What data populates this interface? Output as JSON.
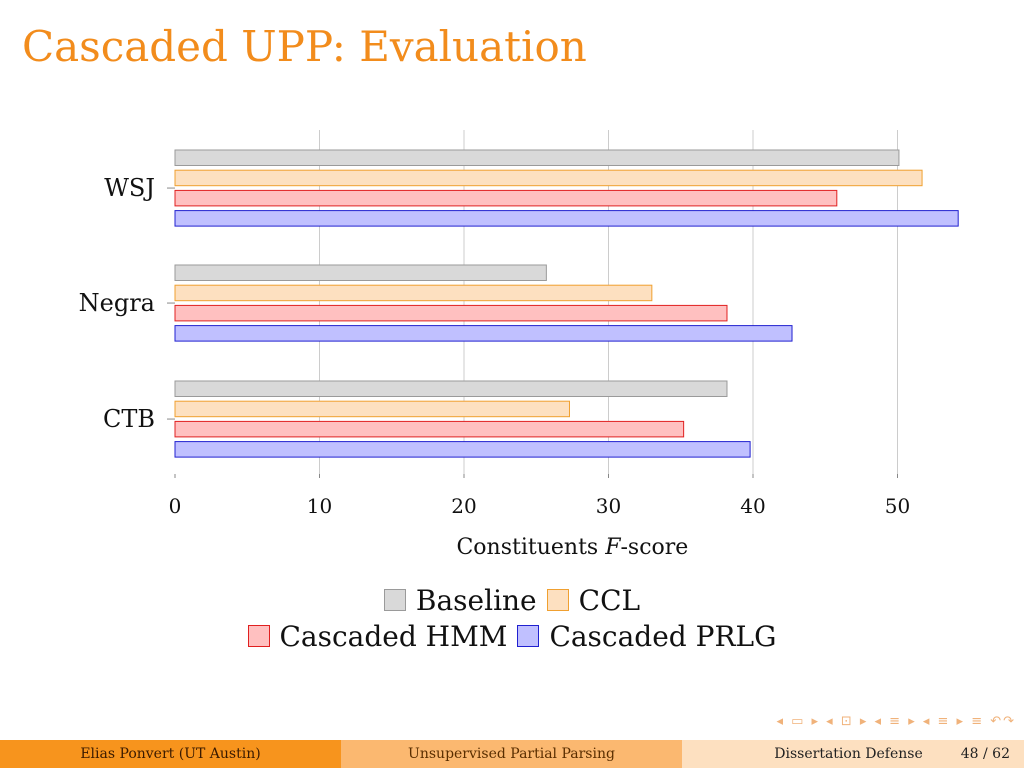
{
  "slide": {
    "title": "Cascaded UPP: Evaluation"
  },
  "colors": {
    "title": "#f28c1c",
    "baseline_fill": "#d9d9d9",
    "baseline_stroke": "#9a9a9a",
    "ccl_fill": "#fde0c0",
    "ccl_stroke": "#f0a030",
    "hmm_fill": "#ffc0c0",
    "hmm_stroke": "#e02020",
    "prlg_fill": "#c0c0ff",
    "prlg_stroke": "#2020d0",
    "grid": "#cccccc"
  },
  "chart_data": {
    "type": "bar",
    "orientation": "horizontal",
    "categories": [
      "WSJ",
      "Negra",
      "CTB"
    ],
    "series": [
      {
        "name": "Baseline",
        "values": [
          50.1,
          25.7,
          38.2
        ]
      },
      {
        "name": "CCL",
        "values": [
          51.7,
          33.0,
          27.3
        ]
      },
      {
        "name": "Cascaded HMM",
        "values": [
          45.8,
          38.2,
          35.2
        ]
      },
      {
        "name": "Cascaded PRLG",
        "values": [
          54.2,
          42.7,
          39.8
        ]
      }
    ],
    "xlabel_pre": "Constituents ",
    "xlabel_italic": "F",
    "xlabel_post": "-score",
    "xticks": [
      0,
      10,
      20,
      30,
      40,
      50
    ],
    "xlim": [
      0,
      55
    ],
    "grid": "vertical",
    "legend_position": "bottom"
  },
  "footer": {
    "author": "Elias Ponvert  (UT Austin)",
    "talk": "Unsupervised Partial Parsing",
    "event": "Dissertation Defense",
    "page": "48 / 62"
  }
}
